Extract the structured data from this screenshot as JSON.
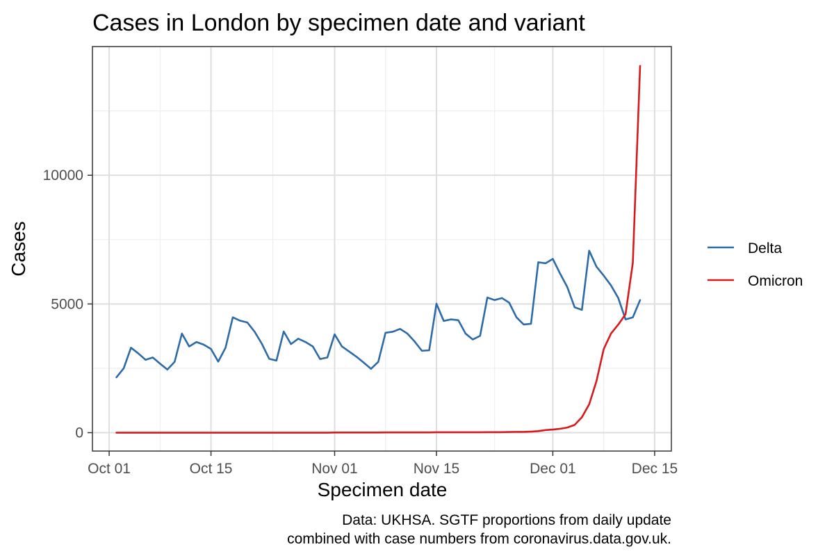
{
  "chart_data": {
    "type": "line",
    "title": "Cases in London by specimen date and variant",
    "xlabel": "Specimen date",
    "ylabel": "Cases",
    "caption": [
      "Data: UKHSA. SGTF proportions from daily update",
      "combined with case numbers from coronavirus.data.gov.uk."
    ],
    "x_ticks": [
      {
        "label": "Oct 01",
        "day": 0
      },
      {
        "label": "Oct 15",
        "day": 14
      },
      {
        "label": "Nov 01",
        "day": 31
      },
      {
        "label": "Nov 15",
        "day": 45
      },
      {
        "label": "Dec 01",
        "day": 61
      },
      {
        "label": "Dec 15",
        "day": 75
      }
    ],
    "x_minor_days": [
      7,
      22.5,
      38,
      53,
      68
    ],
    "y_ticks": [
      0,
      5000,
      10000
    ],
    "y_minor": [
      2500,
      7500,
      12500
    ],
    "xlim": [
      -2.3,
      77.3
    ],
    "ylim": [
      -715,
      15000
    ],
    "x_start_label": "Oct 02",
    "series": [
      {
        "name": "Delta",
        "color": "#2c6aa8",
        "start_day": 1,
        "values": [
          2150,
          2500,
          3300,
          3080,
          2830,
          2920,
          2680,
          2450,
          2750,
          3850,
          3350,
          3520,
          3420,
          3250,
          2760,
          3300,
          4480,
          4350,
          4280,
          3920,
          3450,
          2870,
          2800,
          3930,
          3440,
          3650,
          3520,
          3350,
          2860,
          2920,
          3820,
          3350,
          3150,
          2950,
          2720,
          2480,
          2750,
          3880,
          3920,
          4030,
          3850,
          3540,
          3180,
          3200,
          5010,
          4340,
          4400,
          4370,
          3850,
          3620,
          3760,
          5250,
          5150,
          5230,
          5050,
          4480,
          4200,
          4230,
          6620,
          6580,
          6750,
          6180,
          5650,
          4870,
          4770,
          7070,
          6450,
          6100,
          5720,
          5230,
          4400,
          4480,
          5150
        ]
      },
      {
        "name": "Omicron",
        "color": "#d7191c",
        "start_day": 1,
        "values": [
          0,
          0,
          0,
          0,
          0,
          0,
          0,
          0,
          0,
          0,
          0,
          0,
          0,
          0,
          0,
          0,
          0,
          0,
          0,
          0,
          0,
          0,
          0,
          0,
          0,
          0,
          0,
          0,
          0,
          0,
          5,
          5,
          5,
          5,
          5,
          5,
          5,
          10,
          10,
          10,
          10,
          10,
          10,
          10,
          15,
          15,
          15,
          15,
          15,
          15,
          15,
          20,
          20,
          20,
          25,
          30,
          30,
          40,
          60,
          100,
          120,
          150,
          200,
          300,
          600,
          1100,
          2000,
          3250,
          3850,
          4200,
          4600,
          6600,
          14250
        ]
      }
    ],
    "legend": {
      "position": "right",
      "entries": [
        "Delta",
        "Omicron"
      ]
    }
  }
}
